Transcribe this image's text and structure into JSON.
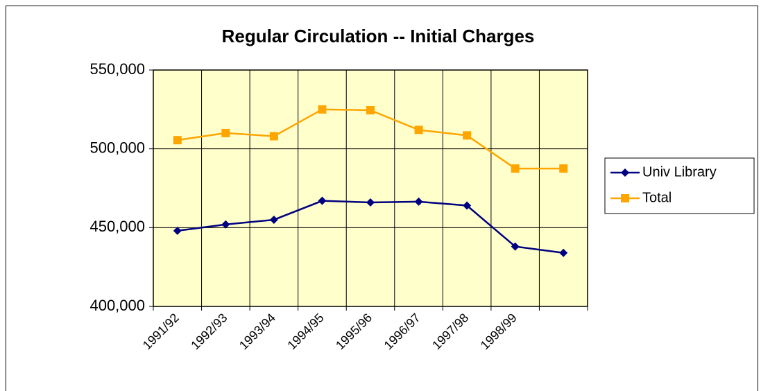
{
  "chart_data": {
    "type": "line",
    "title": "Regular Circulation --  Initial Charges",
    "categories": [
      "1991/92",
      "1992/93",
      "1993/94",
      "1994/95",
      "1995/96",
      "1996/97",
      "1997/98",
      "1998/99",
      null
    ],
    "series": [
      {
        "name": "Univ Library",
        "color": "#000080",
        "marker": "diamond",
        "values": [
          448000,
          452000,
          455000,
          467000,
          466000,
          466500,
          464000,
          438000,
          434000
        ]
      },
      {
        "name": "Total",
        "color": "#FFA500",
        "marker": "square",
        "values": [
          505500,
          510000,
          508000,
          525000,
          524500,
          512000,
          508500,
          487500,
          487500
        ]
      }
    ],
    "ylim": [
      400000,
      550000
    ],
    "yticks": [
      {
        "value": 400000,
        "label": "400,000"
      },
      {
        "value": 450000,
        "label": "450,000"
      },
      {
        "value": 500000,
        "label": "500,000"
      },
      {
        "value": 550000,
        "label": "550,000"
      }
    ],
    "grid": true,
    "legend": "right",
    "plot_background": "#FFFFCC"
  }
}
